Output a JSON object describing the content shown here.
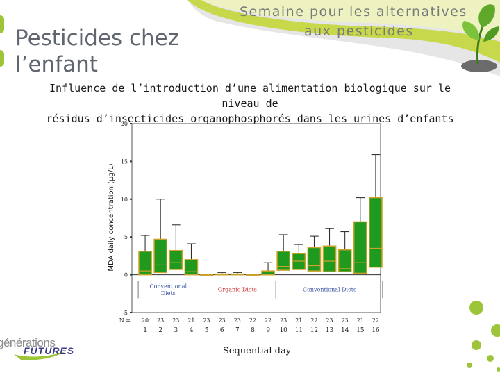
{
  "banner": {
    "line1": "Semaine pour les alternatives",
    "line2": "aux pesticides"
  },
  "slide": {
    "title_line1": "Pesticides chez",
    "title_line2": "l’enfant",
    "subtitle_line1": "Influence de l’introduction d’une alimentation biologique sur le niveau de",
    "subtitle_line2": "résidus d’insecticides organophosphorés dans les urines d’enfants"
  },
  "footer": {
    "logo_top": "générations",
    "logo_bottom": "FUTURES"
  },
  "colors": {
    "box_fill": "#1f9a1f",
    "box_stroke": "#c9a227",
    "accent_green": "#9cc53a",
    "annot_blue": "#3a56a6",
    "annot_red": "#d43a3a"
  },
  "chart_data": {
    "type": "box",
    "ylabel": "MDA daily concentration (µg/L)",
    "xlabel": "Sequential day",
    "ylim": [
      -5,
      20
    ],
    "yticks": [
      -5,
      0,
      5,
      10,
      15,
      20
    ],
    "n_label": "N =",
    "days": [
      "1",
      "2",
      "3",
      "4",
      "5",
      "6",
      "7",
      "8",
      "9",
      "10",
      "11",
      "12",
      "13",
      "14",
      "15",
      "16"
    ],
    "n": [
      "20",
      "23",
      "23",
      "21",
      "23",
      "23",
      "23",
      "22",
      "22",
      "23",
      "21",
      "22",
      "23",
      "23",
      "21",
      "22"
    ],
    "boxes": [
      {
        "day": "1",
        "min": 0,
        "q1": 0,
        "median": 0.5,
        "q3": 3.1,
        "max": 5.2
      },
      {
        "day": "2",
        "min": 0,
        "q1": 0.3,
        "median": 1.3,
        "q3": 4.7,
        "max": 10.0
      },
      {
        "day": "3",
        "min": 0,
        "q1": 0.7,
        "median": 1.6,
        "q3": 3.2,
        "max": 6.6
      },
      {
        "day": "4",
        "min": 0,
        "q1": 0,
        "median": 0.4,
        "q3": 2.0,
        "max": 4.1
      },
      {
        "day": "5",
        "min": 0,
        "q1": 0,
        "median": 0,
        "q3": 0,
        "max": 0
      },
      {
        "day": "6",
        "min": 0,
        "q1": 0,
        "median": 0,
        "q3": 0.1,
        "max": 0.3
      },
      {
        "day": "7",
        "min": 0,
        "q1": 0,
        "median": 0,
        "q3": 0.1,
        "max": 0.3
      },
      {
        "day": "8",
        "min": 0,
        "q1": 0,
        "median": 0,
        "q3": 0,
        "max": 0
      },
      {
        "day": "9",
        "min": 0,
        "q1": 0,
        "median": 0,
        "q3": 0.5,
        "max": 1.6
      },
      {
        "day": "10",
        "min": 0,
        "q1": 0.6,
        "median": 1.1,
        "q3": 3.1,
        "max": 5.3
      },
      {
        "day": "11",
        "min": 0,
        "q1": 0.7,
        "median": 1.8,
        "q3": 2.8,
        "max": 4.0
      },
      {
        "day": "12",
        "min": 0,
        "q1": 0.5,
        "median": 1.2,
        "q3": 3.6,
        "max": 5.1
      },
      {
        "day": "13",
        "min": 0,
        "q1": 0.4,
        "median": 1.8,
        "q3": 3.8,
        "max": 6.1
      },
      {
        "day": "14",
        "min": 0,
        "q1": 0.4,
        "median": 0.8,
        "q3": 3.3,
        "max": 5.7
      },
      {
        "day": "15",
        "min": 0,
        "q1": 0.2,
        "median": 1.6,
        "q3": 7.0,
        "max": 10.2
      },
      {
        "day": "16",
        "min": 0,
        "q1": 1.0,
        "median": 3.5,
        "q3": 10.2,
        "max": 15.9
      }
    ],
    "annotations": [
      {
        "label": "Conventional Diets",
        "from_day": "1",
        "to_day": "4",
        "color": "blue"
      },
      {
        "label": "Organic Diets",
        "from_day": "5",
        "to_day": "9",
        "color": "red"
      },
      {
        "label": "Conventional Diets",
        "from_day": "10",
        "to_day": "16",
        "color": "blue"
      }
    ]
  }
}
